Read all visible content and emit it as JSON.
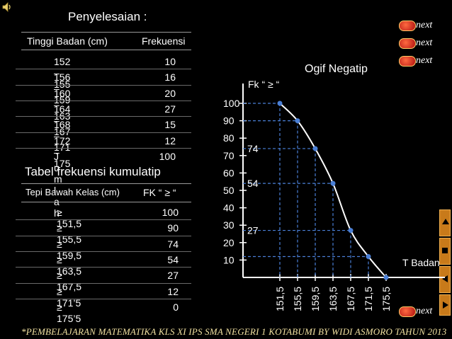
{
  "title": "Penyelesaian :",
  "table1": {
    "headers": [
      "Tinggi Badan (cm)",
      "Frekuensi"
    ],
    "rows": [
      [
        "152 – 155",
        "10"
      ],
      [
        "156 – 159",
        "16"
      ],
      [
        "160 – 163",
        "20"
      ],
      [
        "164 – 167",
        "27"
      ],
      [
        "168 – 171",
        "15"
      ],
      [
        "172 – 175",
        "12"
      ],
      [
        "J u m l a h",
        "100"
      ]
    ]
  },
  "subtitle": "Tabel frekuensi kumulatip",
  "table2": {
    "headers": [
      "Tepi Bawah Kelas (cm)",
      "FK “ ≥ “"
    ],
    "rows": [
      [
        "≥ 151,5",
        "100"
      ],
      [
        "≥ 155,5",
        "90"
      ],
      [
        "≥ 159,5",
        "74"
      ],
      [
        "≥ 163,5",
        "54"
      ],
      [
        "≥ 167,5",
        "27"
      ],
      [
        "≥ 171’5",
        "12"
      ],
      [
        "≥ 175’5",
        "0"
      ]
    ]
  },
  "next_buttons": [
    "next",
    "next",
    "next",
    "next"
  ],
  "footer": "*PEMBELAJARAN MATEMATIKA KLS XI IPS SMA NEGERI 1 KOTABUMI BY WIDI ASMORO TAHUN 2013",
  "chart_data": {
    "type": "line",
    "title": "Ogif Negatip",
    "ylabel": "Fk “ ≥ “",
    "xlabel": "T Badan",
    "x": [
      "151,5",
      "155,5",
      "159,5",
      "163,5",
      "167,5",
      "171,5",
      "175,5"
    ],
    "values": [
      100,
      90,
      74,
      54,
      27,
      12,
      0
    ],
    "yticks": [
      "10",
      "20",
      "30",
      "40",
      "50",
      "60",
      "70",
      "80",
      "90",
      "100"
    ],
    "annotations": [
      "74",
      "54",
      "27"
    ],
    "ylim": [
      0,
      100
    ],
    "colors": {
      "line": "#ffffff",
      "point": "#4a7fd6",
      "guide": "#4a7fd6"
    }
  }
}
